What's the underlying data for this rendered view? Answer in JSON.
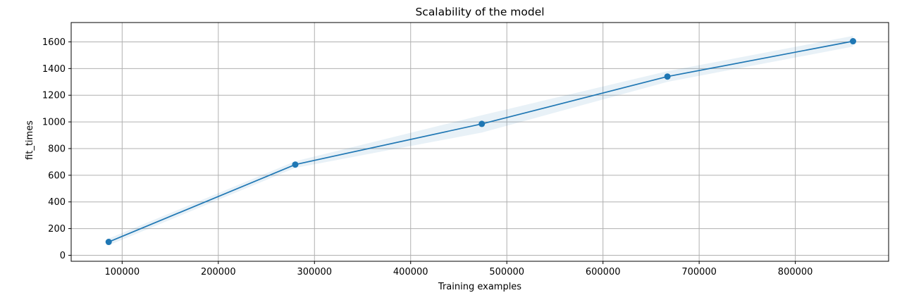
{
  "chart_data": {
    "type": "line",
    "title": "Scalability of the model",
    "xlabel": "Training examples",
    "ylabel": "fit_times",
    "xlim": [
      47000,
      897000
    ],
    "ylim": [
      -45,
      1745
    ],
    "grid": true,
    "x_ticks": [
      100000,
      200000,
      300000,
      400000,
      500000,
      600000,
      700000,
      800000
    ],
    "x_tick_labels": [
      "100000",
      "200000",
      "300000",
      "400000",
      "500000",
      "600000",
      "700000",
      "800000"
    ],
    "y_ticks": [
      0,
      200,
      400,
      600,
      800,
      1000,
      1200,
      1400,
      1600
    ],
    "y_tick_labels": [
      "0",
      "200",
      "400",
      "600",
      "800",
      "1000",
      "1200",
      "1400",
      "1600"
    ],
    "series": [
      {
        "name": "fit_times",
        "color": "#1f77b4",
        "band_color": "#1f77b4",
        "band_opacity": 0.1,
        "x": [
          86000,
          280000,
          474000,
          667000,
          860000
        ],
        "y": [
          100,
          680,
          985,
          1340,
          1605
        ],
        "lower": [
          75,
          655,
          920,
          1300,
          1565
        ],
        "upper": [
          125,
          705,
          1050,
          1380,
          1645
        ]
      }
    ]
  }
}
